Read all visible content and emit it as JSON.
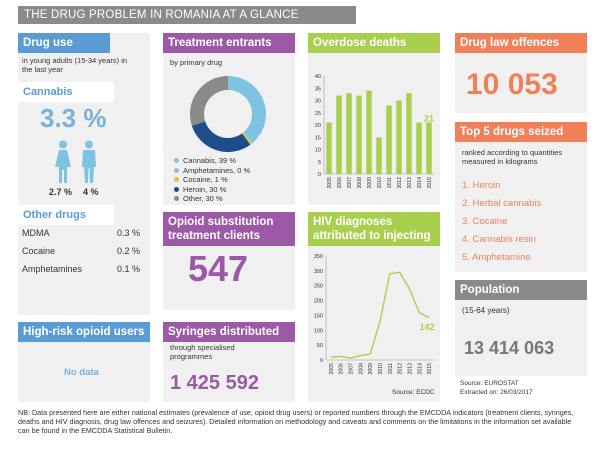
{
  "title": "THE DRUG PROBLEM IN ROMANIA AT A GLANCE",
  "colors": {
    "blue": "#5b9bd5",
    "teal": "#7ec4e2",
    "purple": "#9b59a6",
    "green": "#a8cf4e",
    "orange": "#f0805a",
    "grey": "#8a8a8a",
    "panel": "#f0f0f0"
  },
  "drug_use": {
    "header": "Drug use",
    "subtitle": "in young adults (15-34 years) in the last year",
    "cannabis_header": "Cannabis",
    "cannabis_value": "3.3 %",
    "female_value": "2.7 %",
    "male_value": "4 %",
    "other_header": "Other drugs",
    "other": [
      {
        "name": "MDMA",
        "value": "0.3 %"
      },
      {
        "name": "Cocaine",
        "value": "0.2 %"
      },
      {
        "name": "Amphetamines",
        "value": "0.1 %"
      }
    ]
  },
  "high_risk": {
    "header": "High-risk opioid users",
    "value": "No data"
  },
  "treatment": {
    "header": "Treatment entrants",
    "subtitle": "by primary drug",
    "legend": [
      {
        "label": "Cannabis, 39 %",
        "color": "#7ec4e2"
      },
      {
        "label": "Amphetamines, 0 %",
        "color": "#9fb9d2"
      },
      {
        "label": "Cocaine, 1 %",
        "color": "#d8c54a"
      },
      {
        "label": "Heroin, 30 %",
        "color": "#1e4e8a"
      },
      {
        "label": "Other, 30 %",
        "color": "#8a8a8a"
      }
    ]
  },
  "opioid_substitution": {
    "header": "Opioid substitution treatment clients",
    "value": "547"
  },
  "syringes": {
    "header": "Syringes distributed",
    "subtitle": "through specialised programmes",
    "value": "1 425 592"
  },
  "overdose": {
    "header": "Overdose deaths"
  },
  "hiv": {
    "header": "HIV diagnoses attributed to injecting",
    "source": "Source: ECDC"
  },
  "drug_law": {
    "header": "Drug law offences",
    "value": "10 053"
  },
  "top5": {
    "header": "Top 5 drugs seized",
    "subtitle": "ranked according to quantities measured in kilograms",
    "items": [
      "1. Heroin",
      "2. Herbal cannabis",
      "3. Cocaine",
      "4. Cannabis resin",
      "5. Amphetamine"
    ]
  },
  "population": {
    "header": "Population",
    "subtitle": "(15-64 years)",
    "value": "13 414 063"
  },
  "source": {
    "line1": "Source: EUROSTAT",
    "line2": "Extracted on: 26/03/2017"
  },
  "footnote": "NB: Data presented here are either national estimates (prevalence of use, opioid drug users) or reported numbers through the EMCDDA indicators (treatment clients, syringes, deaths and HIV diagnosis, drug law offences and seizures). Detailed information on methodology and caveats and comments on the limitations in the information set available can be found in the EMCDDA Statistical Bulletin.",
  "chart_data": [
    {
      "type": "pie",
      "title": "Treatment entrants",
      "categories": [
        "Cannabis",
        "Amphetamines",
        "Cocaine",
        "Heroin",
        "Other"
      ],
      "values": [
        39,
        0,
        1,
        30,
        30
      ]
    },
    {
      "type": "bar",
      "title": "Overdose deaths",
      "categories": [
        "2005",
        "2006",
        "2007",
        "2008",
        "2009",
        "2010",
        "2011",
        "2012",
        "2013",
        "2014",
        "2015"
      ],
      "values": [
        21,
        32,
        33,
        32,
        34,
        15,
        28,
        30,
        33,
        21,
        21
      ],
      "ylim": [
        0,
        40
      ],
      "yticks": [
        0,
        5,
        10,
        15,
        20,
        25,
        30,
        35,
        40
      ],
      "highlight_label": "21"
    },
    {
      "type": "line",
      "title": "HIV diagnoses attributed to injecting",
      "x": [
        "2005",
        "2006",
        "2007",
        "2008",
        "2009",
        "2010",
        "2011",
        "2012",
        "2013",
        "2014",
        "2015"
      ],
      "values": [
        10,
        12,
        6,
        15,
        20,
        130,
        290,
        295,
        240,
        160,
        142
      ],
      "ylim": [
        0,
        350
      ],
      "yticks": [
        0,
        50,
        100,
        150,
        200,
        250,
        300,
        350
      ],
      "last_label": "142"
    }
  ]
}
